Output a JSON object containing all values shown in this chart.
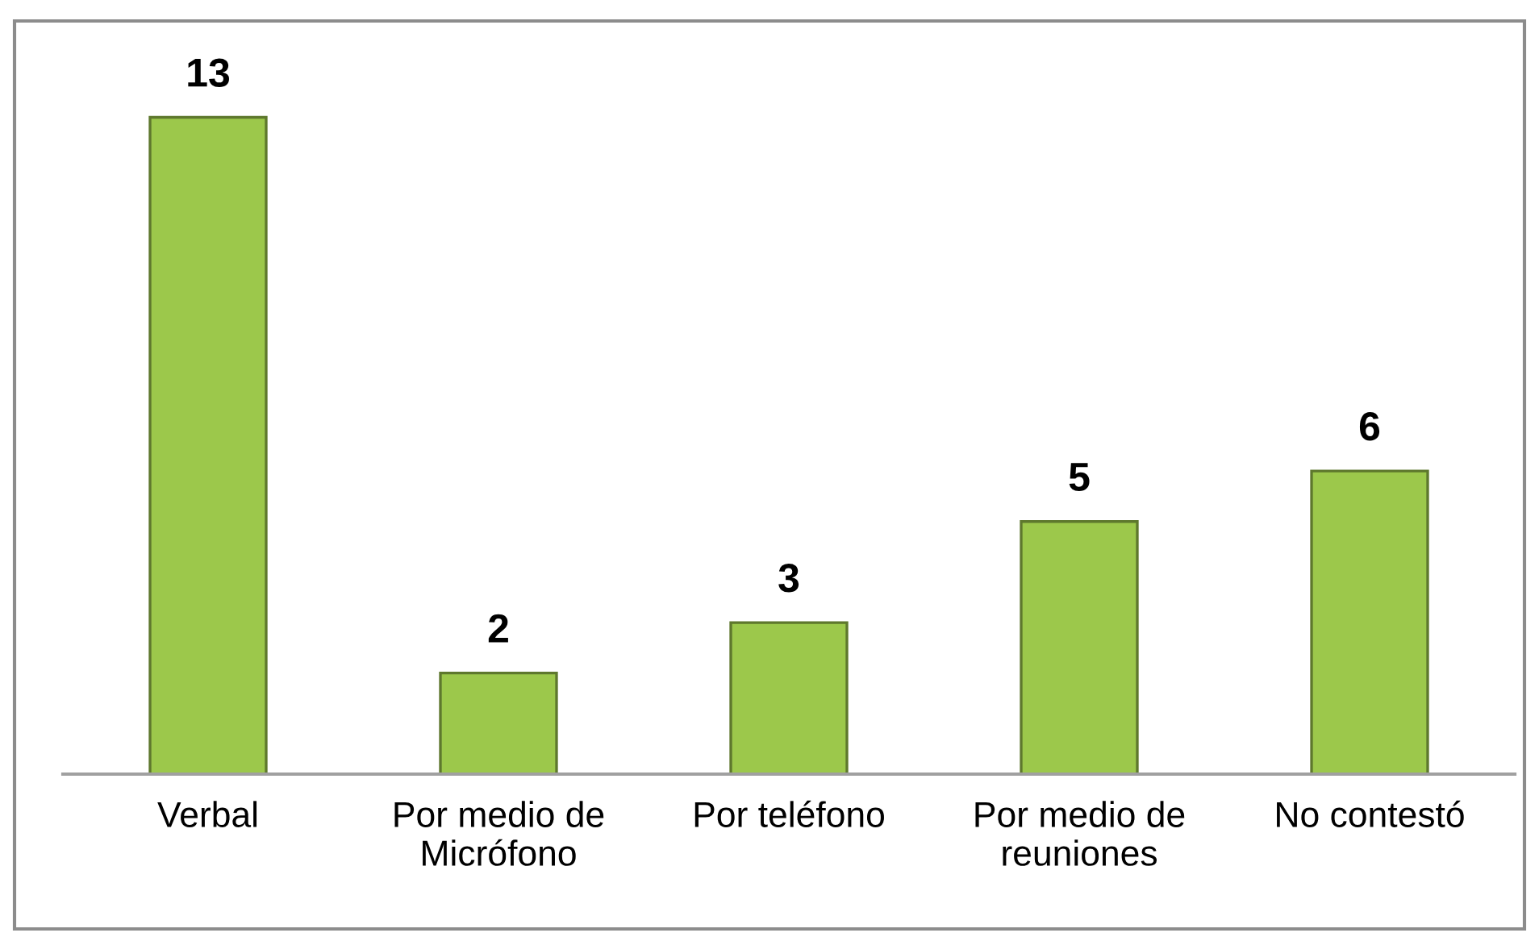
{
  "chart_data": {
    "type": "bar",
    "categories": [
      "Verbal",
      "Por medio de\nMicrófono",
      "Por teléfono",
      "Por medio de\nreuniones",
      "No contestó"
    ],
    "values": [
      13,
      2,
      3,
      5,
      6
    ],
    "color": "#9cc84b",
    "data_labels": true
  }
}
